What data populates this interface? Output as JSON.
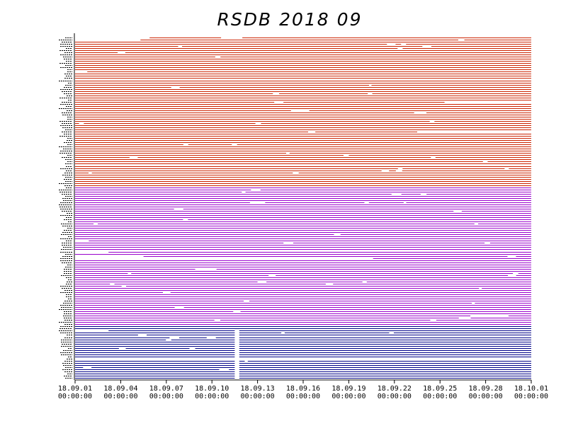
{
  "chart_data": {
    "type": "line",
    "title": "RSDB  2018  09",
    "xlabel": "",
    "ylabel": "",
    "x_ticks": [
      {
        "day": 1,
        "date": "18.09.01",
        "time": "00:00:00"
      },
      {
        "day": 4,
        "date": "18.09.04",
        "time": "00:00:00"
      },
      {
        "day": 7,
        "date": "18.09.07",
        "time": "00:00:00"
      },
      {
        "day": 10,
        "date": "18.09.10",
        "time": "00:00:00"
      },
      {
        "day": 13,
        "date": "18.09.13",
        "time": "00:00:00"
      },
      {
        "day": 16,
        "date": "18.09.16",
        "time": "00:00:00"
      },
      {
        "day": 19,
        "date": "18.09.19",
        "time": "00:00:00"
      },
      {
        "day": 22,
        "date": "18.09.22",
        "time": "00:00:00"
      },
      {
        "day": 25,
        "date": "18.09.25",
        "time": "00:00:00"
      },
      {
        "day": 28,
        "date": "18.09.28",
        "time": "00:00:00"
      },
      {
        "day": 31,
        "date": "18.10.01",
        "time": "00:00:00"
      }
    ],
    "x_range_days": [
      1,
      31
    ],
    "series_groups": [
      {
        "color": "#cc2200",
        "stations": 70
      },
      {
        "color": "#9900cc",
        "stations": 65
      },
      {
        "color": "#000088",
        "stations": 25
      }
    ],
    "notable_gaps_days": [
      {
        "station": 0,
        "from": 1,
        "to": 5.9
      },
      {
        "station": 0,
        "from": 10.6,
        "to": 12
      },
      {
        "station": 1,
        "from": 1,
        "to": 5.3
      },
      {
        "station": 1,
        "from": 26.2,
        "to": 26.6
      },
      {
        "station": 7,
        "from": 3.8,
        "to": 4.3
      },
      {
        "station": 16,
        "from": 1,
        "to": 1.8
      },
      {
        "station": 30,
        "from": 14.1,
        "to": 14.7
      },
      {
        "station": 30,
        "from": 25.3,
        "to": 31
      },
      {
        "station": 34,
        "from": 15.2,
        "to": 16.4
      },
      {
        "station": 35,
        "from": 23.3,
        "to": 24.1
      },
      {
        "station": 44,
        "from": 23.5,
        "to": 31
      },
      {
        "station": 56,
        "from": 24.4,
        "to": 24.7
      },
      {
        "station": 77,
        "from": 12.5,
        "to": 13.5
      },
      {
        "station": 95,
        "from": 1,
        "to": 1.9
      },
      {
        "station": 100,
        "from": 1,
        "to": 3.2
      },
      {
        "station": 102,
        "from": 1,
        "to": 5.5
      },
      {
        "station": 103,
        "from": 1,
        "to": 20.6
      },
      {
        "station": 108,
        "from": 8.9,
        "to": 10.3
      },
      {
        "station": 130,
        "from": 27,
        "to": 29.5
      },
      {
        "station": 137,
        "from": 1,
        "to": 3.2
      },
      {
        "station": 150,
        "from": 1,
        "to": 31
      }
    ],
    "common_gap_days": [
      {
        "from": 11.5,
        "to": 11.8,
        "stations_from": 137,
        "stations_to": 159
      }
    ]
  }
}
